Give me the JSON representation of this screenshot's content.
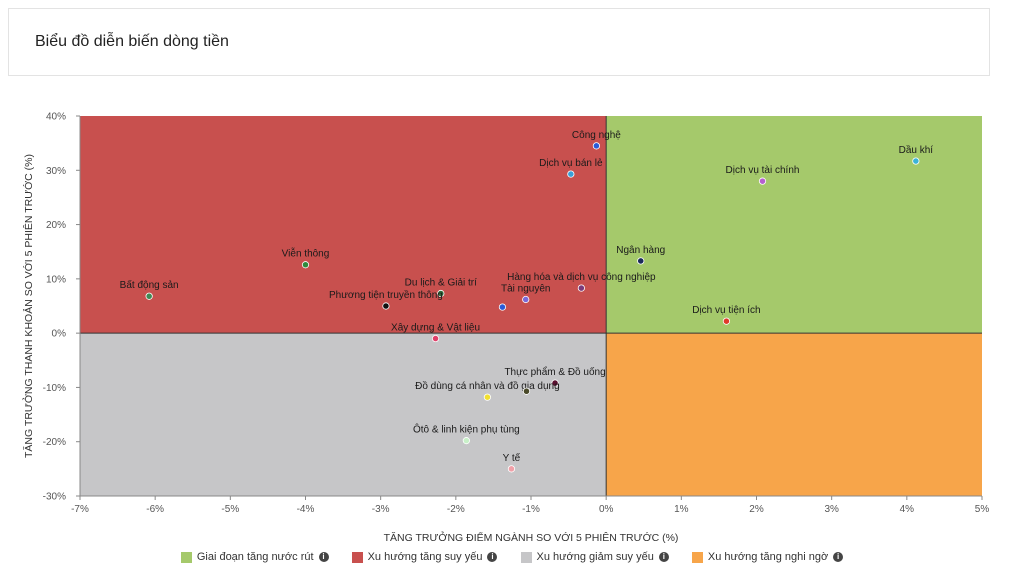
{
  "header": {
    "title": "Biểu đồ diễn biến dòng tiền"
  },
  "chart_data": {
    "type": "scatter",
    "xlabel": "TĂNG TRƯỞNG ĐIỂM NGÀNH SO VỚI 5 PHIÊN TRƯỚC (%)",
    "ylabel": "TĂNG TRƯỞNG THANH KHOẢN SO VỚI 5 PHIÊN TRƯỚC (%)",
    "xlim": [
      -7,
      5
    ],
    "ylim": [
      -30,
      40
    ],
    "x_ticks": [
      -7,
      -6,
      -5,
      -4,
      -3,
      -2,
      -1,
      0,
      1,
      2,
      3,
      4,
      5
    ],
    "y_ticks": [
      -30,
      -20,
      -10,
      0,
      10,
      20,
      30,
      40
    ],
    "x_tick_labels": [
      "-7%",
      "-6%",
      "-5%",
      "-4%",
      "-3%",
      "-2%",
      "-1%",
      "0%",
      "1%",
      "2%",
      "3%",
      "4%",
      "5%"
    ],
    "y_tick_labels": [
      "-30%",
      "-20%",
      "-10%",
      "0%",
      "10%",
      "20%",
      "30%",
      "40%"
    ],
    "quadrants": [
      {
        "name": "Giai đoạn tăng nước rút",
        "color": "#a5c96b"
      },
      {
        "name": "Xu hướng tăng suy yếu",
        "color": "#c8504e"
      },
      {
        "name": "Xu hướng giảm suy yếu",
        "color": "#c6c6c8"
      },
      {
        "name": "Xu hướng tăng nghi ngờ",
        "color": "#f7a54a"
      }
    ],
    "points": [
      {
        "label": "Công nghệ",
        "x": -0.13,
        "y": 34.5,
        "color": "#2b5bd7"
      },
      {
        "label": "Dịch vụ bán lẻ",
        "x": -0.47,
        "y": 29.3,
        "color": "#3aa0d8"
      },
      {
        "label": "Dầu khí",
        "x": 4.12,
        "y": 31.7,
        "color": "#3ab3d8"
      },
      {
        "label": "Dịch vụ tài chính",
        "x": 2.08,
        "y": 28.0,
        "color": "#b55fd0"
      },
      {
        "label": "Viễn thông",
        "x": -4.0,
        "y": 12.6,
        "color": "#2f8a3c"
      },
      {
        "label": "Ngân hàng",
        "x": 0.46,
        "y": 13.3,
        "color": "#1a2a5a"
      },
      {
        "label": "Bất động sản",
        "x": -6.08,
        "y": 6.8,
        "color": "#3f8a55"
      },
      {
        "label": "Du lịch & Giải trí",
        "x": -2.2,
        "y": 7.3,
        "color": "#2f6b3a"
      },
      {
        "label": "Hàng hóa và dịch vụ công nghiệp",
        "x": -0.33,
        "y": 8.3,
        "color": "#7a3a7a"
      },
      {
        "label": "Phương tiện truyền thông",
        "x": -2.93,
        "y": 5.0,
        "color": "#111111"
      },
      {
        "label": "Tài nguyên",
        "x": -1.07,
        "y": 6.2,
        "color": "#7b6ad8"
      },
      {
        "label": "Tài nguyên",
        "x": -1.38,
        "y": 4.8,
        "color": "#2b5bd7",
        "hide_label": true
      },
      {
        "label": "Dịch vụ tiện ích",
        "x": 1.6,
        "y": 2.2,
        "color": "#e03a2a"
      },
      {
        "label": "Xây dựng & Vật liệu",
        "x": -2.27,
        "y": -1.0,
        "color": "#e0406a"
      },
      {
        "label": "Thực phẩm & Đồ uống",
        "x": -0.68,
        "y": -9.2,
        "color": "#5a1030"
      },
      {
        "label": "Đồ dùng cá nhân và đồ gia dụng",
        "x": -1.58,
        "y": -11.8,
        "color": "#f2e030"
      },
      {
        "label": "Đồ dùng cá nhân và đồ gia dụng",
        "x": -1.06,
        "y": -10.7,
        "color": "#4a4a2a",
        "hide_label": true
      },
      {
        "label": "Ôtô & linh kiện phụ tùng",
        "x": -1.86,
        "y": -19.8,
        "color": "#c8f0c8"
      },
      {
        "label": "Y tế",
        "x": -1.26,
        "y": -25.0,
        "color": "#f0a0a8"
      }
    ]
  },
  "legend": {
    "items": [
      {
        "label": "Giai đoạn tăng nước rút",
        "color": "#a5c96b"
      },
      {
        "label": "Xu hướng tăng suy yếu",
        "color": "#c8504e"
      },
      {
        "label": "Xu hướng giảm suy yếu",
        "color": "#c6c6c8"
      },
      {
        "label": "Xu hướng tăng nghi ngờ",
        "color": "#f7a54a"
      }
    ]
  }
}
